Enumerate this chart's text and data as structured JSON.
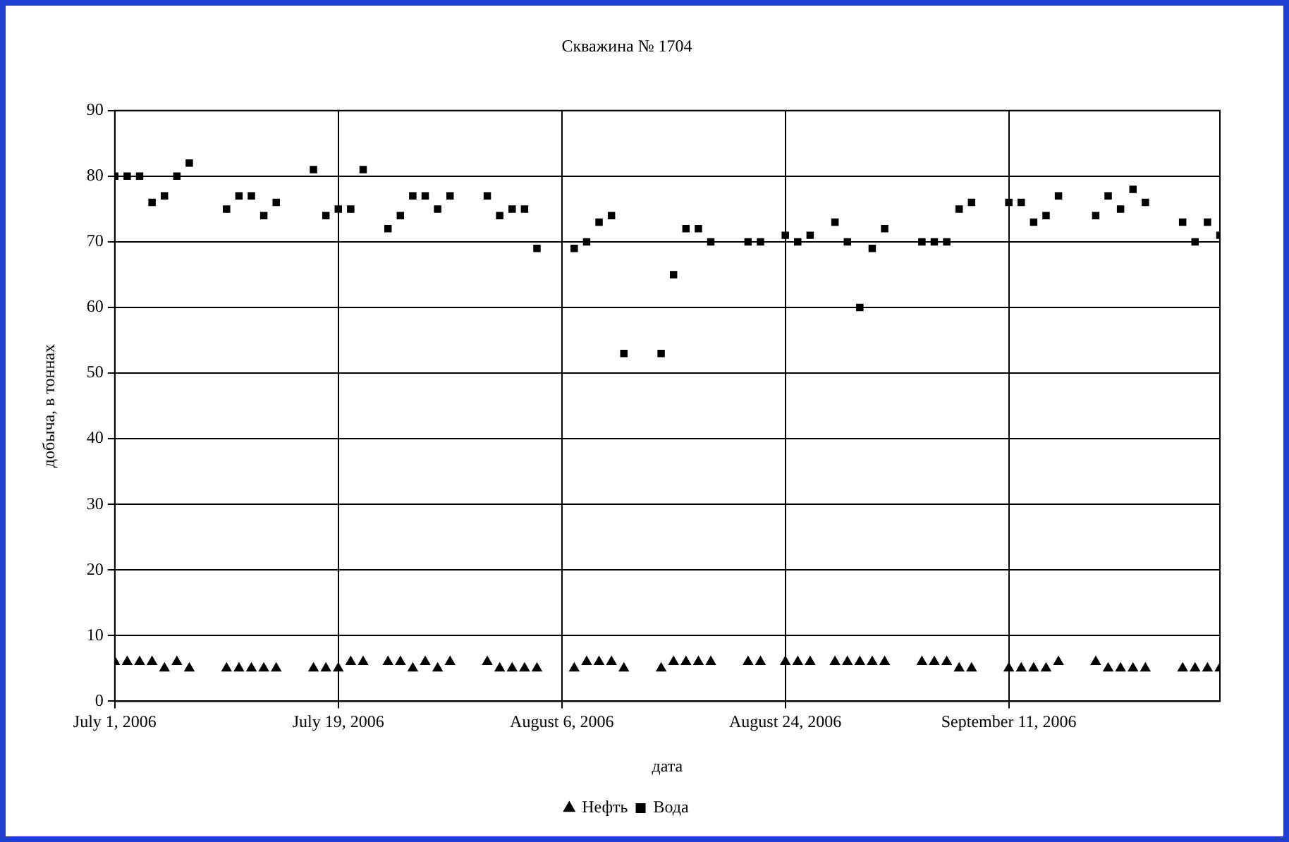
{
  "chart_data": {
    "type": "scatter",
    "title": "Скважина № 1704",
    "xlabel": "дата",
    "ylabel": "добыча, в тоннах",
    "x": [
      "2006-07-01",
      "2006-07-02",
      "2006-07-03",
      "2006-07-04",
      "2006-07-05",
      "2006-07-06",
      "2006-07-07",
      "2006-07-10",
      "2006-07-11",
      "2006-07-12",
      "2006-07-13",
      "2006-07-14",
      "2006-07-17",
      "2006-07-18",
      "2006-07-19",
      "2006-07-20",
      "2006-07-21",
      "2006-07-23",
      "2006-07-24",
      "2006-07-25",
      "2006-07-26",
      "2006-07-27",
      "2006-07-28",
      "2006-07-31",
      "2006-08-01",
      "2006-08-02",
      "2006-08-03",
      "2006-08-04",
      "2006-08-07",
      "2006-08-08",
      "2006-08-09",
      "2006-08-10",
      "2006-08-11",
      "2006-08-14",
      "2006-08-15",
      "2006-08-16",
      "2006-08-17",
      "2006-08-18",
      "2006-08-21",
      "2006-08-22",
      "2006-08-24",
      "2006-08-25",
      "2006-08-26",
      "2006-08-28",
      "2006-08-29",
      "2006-08-30",
      "2006-08-31",
      "2006-09-01",
      "2006-09-04",
      "2006-09-05",
      "2006-09-06",
      "2006-09-07",
      "2006-09-08",
      "2006-09-11",
      "2006-09-12",
      "2006-09-13",
      "2006-09-14",
      "2006-09-15",
      "2006-09-18",
      "2006-09-19",
      "2006-09-20",
      "2006-09-21",
      "2006-09-22",
      "2006-09-25",
      "2006-09-26",
      "2006-09-27",
      "2006-09-28"
    ],
    "series": [
      {
        "name": "Нефть",
        "color": "#000000",
        "marker": "triangle",
        "values": [
          6,
          6,
          6,
          6,
          5,
          6,
          5,
          5,
          5,
          5,
          5,
          5,
          5,
          5,
          5,
          6,
          6,
          6,
          6,
          5,
          6,
          5,
          6,
          6,
          5,
          5,
          5,
          5,
          5,
          6,
          6,
          6,
          5,
          5,
          6,
          6,
          6,
          6,
          6,
          6,
          6,
          6,
          6,
          6,
          6,
          6,
          6,
          6,
          6,
          6,
          6,
          5,
          5,
          5,
          5,
          5,
          5,
          6,
          6,
          5,
          5,
          5,
          5,
          5,
          5,
          5,
          5
        ]
      },
      {
        "name": "Вода",
        "color": "#000000",
        "marker": "square",
        "values": [
          80,
          80,
          80,
          76,
          77,
          80,
          82,
          75,
          77,
          77,
          74,
          76,
          81,
          74,
          75,
          75,
          81,
          72,
          74,
          77,
          77,
          75,
          77,
          77,
          74,
          75,
          75,
          69,
          69,
          70,
          73,
          74,
          53,
          53,
          65,
          72,
          72,
          70,
          70,
          70,
          71,
          70,
          71,
          73,
          70,
          60,
          69,
          72,
          70,
          70,
          70,
          75,
          76,
          76,
          76,
          73,
          74,
          77,
          74,
          77,
          75,
          78,
          76,
          73,
          70,
          73,
          71
        ]
      }
    ],
    "xlim": [
      "2006-07-01",
      "2006-09-28"
    ],
    "xticks": [
      {
        "value": "2006-07-01",
        "label": "July 1, 2006"
      },
      {
        "value": "2006-07-19",
        "label": "July 19, 2006"
      },
      {
        "value": "2006-08-06",
        "label": "August 6, 2006"
      },
      {
        "value": "2006-08-24",
        "label": "August 24, 2006"
      },
      {
        "value": "2006-09-11",
        "label": "September 11, 2006"
      }
    ],
    "ylim": [
      0,
      90
    ],
    "yticks": [
      0,
      10,
      20,
      30,
      40,
      50,
      60,
      70,
      80,
      90
    ],
    "grid": true,
    "legend": "bottom"
  }
}
